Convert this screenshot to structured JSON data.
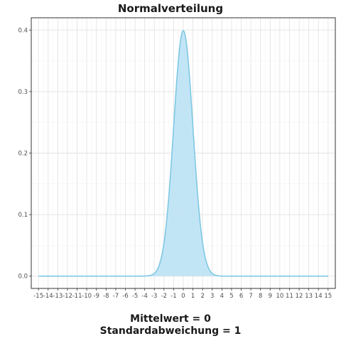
{
  "chart_data": {
    "type": "area",
    "title": "Normalverteilung",
    "distribution": "normal",
    "mean": 0,
    "sd": 1,
    "xlim": [
      -15.75,
      15.75
    ],
    "ylim": [
      -0.02,
      0.42
    ],
    "x_ticks": [
      -15,
      -14,
      -13,
      -12,
      -11,
      -10,
      -9,
      -8,
      -7,
      -6,
      -5,
      -4,
      -3,
      -2,
      -1,
      0,
      1,
      2,
      3,
      4,
      5,
      6,
      7,
      8,
      9,
      10,
      11,
      12,
      13,
      14,
      15
    ],
    "y_ticks": [
      0.0,
      0.1,
      0.2,
      0.3,
      0.4
    ],
    "y_tick_labels": [
      "0.0",
      "0.1",
      "0.2",
      "0.3",
      "0.4"
    ],
    "grid": true,
    "legend": "none",
    "fill_color": "#bfe4f5",
    "line_color": "#7ec8e3",
    "annotations": [
      "Mittelwert = 0",
      "Standardabweichung = 1"
    ]
  }
}
